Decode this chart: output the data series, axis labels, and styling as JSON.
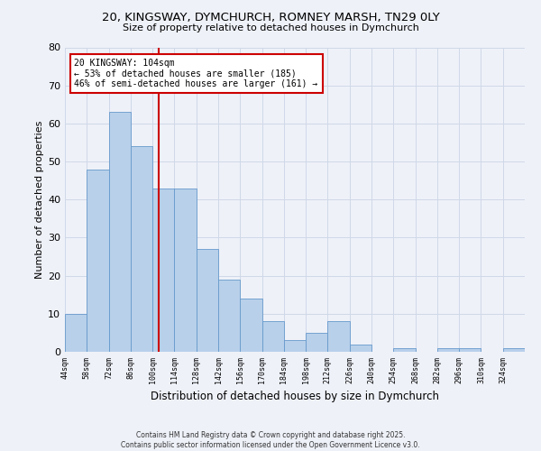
{
  "title_line1": "20, KINGSWAY, DYMCHURCH, ROMNEY MARSH, TN29 0LY",
  "title_line2": "Size of property relative to detached houses in Dymchurch",
  "xlabel": "Distribution of detached houses by size in Dymchurch",
  "ylabel": "Number of detached properties",
  "bar_values": [
    10,
    48,
    63,
    54,
    43,
    43,
    27,
    19,
    14,
    8,
    3,
    5,
    8,
    2,
    0,
    1,
    0,
    1,
    1,
    0,
    1
  ],
  "bin_labels": [
    "44sqm",
    "58sqm",
    "72sqm",
    "86sqm",
    "100sqm",
    "114sqm",
    "128sqm",
    "142sqm",
    "156sqm",
    "170sqm",
    "184sqm",
    "198sqm",
    "212sqm",
    "226sqm",
    "240sqm",
    "254sqm",
    "268sqm",
    "282sqm",
    "296sqm",
    "310sqm",
    "324sqm"
  ],
  "bar_color": "#b8d0ea",
  "bar_edge_color": "#6699cc",
  "grid_color": "#d0d8e8",
  "bg_color": "#eef1f8",
  "annotation_text": "20 KINGSWAY: 104sqm\n← 53% of detached houses are smaller (185)\n46% of semi-detached houses are larger (161) →",
  "vline_color": "#cc0000",
  "ylim": [
    0,
    80
  ],
  "yticks": [
    0,
    10,
    20,
    30,
    40,
    50,
    60,
    70,
    80
  ],
  "bin_edges_sqm": [
    44,
    58,
    72,
    86,
    100,
    114,
    128,
    142,
    156,
    170,
    184,
    198,
    212,
    226,
    240,
    254,
    268,
    282,
    296,
    310,
    324
  ],
  "bin_width": 14,
  "vline_x_sqm": 104,
  "footnote": "Contains HM Land Registry data © Crown copyright and database right 2025.\nContains public sector information licensed under the Open Government Licence v3.0."
}
